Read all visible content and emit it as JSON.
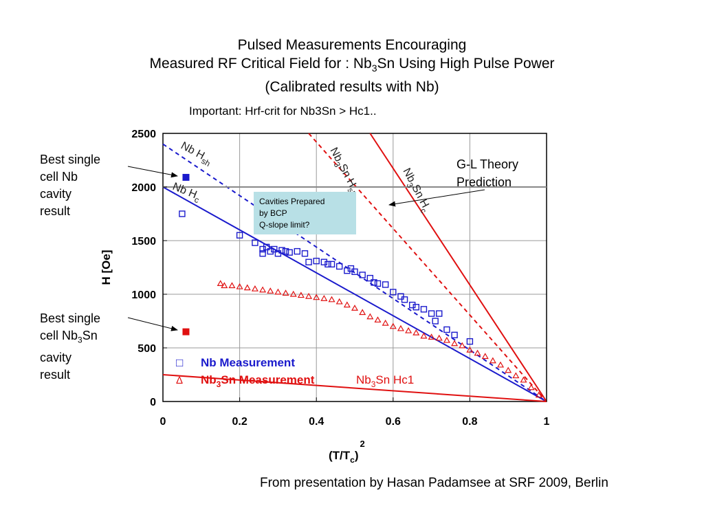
{
  "title": {
    "line1": "Pulsed Measurements Encouraging",
    "line2_pre": "Measured RF Critical Field for : Nb",
    "line2_sub": "3",
    "line2_post": "Sn Using High Pulse Power",
    "line3": "(Calibrated results with Nb)"
  },
  "note": "Important: Hrf-crit for Nb3Sn > Hc1..",
  "side_labels": {
    "nb": [
      "Best single",
      "cell Nb",
      "cavity",
      "result"
    ],
    "nb3sn_line1": "Best single",
    "nb3sn_line2_pre": "cell Nb",
    "nb3sn_line2_sub": "3",
    "nb3sn_line2_post": "Sn",
    "nb3sn_line3": "cavity",
    "nb3sn_line4": "result"
  },
  "credit": "From presentation by Hasan Padamsee at SRF 2009, Berlin",
  "colors": {
    "nb": "#1a1acc",
    "nb3sn": "#e01010",
    "theory_line": "#888888",
    "callout_bg": "#b8e0e6"
  },
  "chart_data": {
    "type": "scatter",
    "xlabel": "(T/T",
    "xlabel_sub": "c",
    "xlabel_post": ")",
    "xlabel_sup": "2",
    "ylabel": "H [Oe]",
    "xlim": [
      0,
      1
    ],
    "ylim": [
      0,
      2500
    ],
    "xticks": [
      "0",
      "0.2",
      "0.4",
      "0.6",
      "0.8",
      "1"
    ],
    "yticks": [
      "0",
      "500",
      "1000",
      "1500",
      "2000",
      "2500"
    ],
    "grid": true,
    "legend": {
      "nb_symbol": "□",
      "nb_label": "Nb Measurement",
      "nb3sn_symbol": "Δ",
      "nb3sn_label_pre": "Nb",
      "nb3sn_label_sub": "3",
      "nb3sn_label_post": "Sn Measurement"
    },
    "annotations": {
      "nb_hsh": "Nb H",
      "nb_hsh_sub": "sh",
      "nb_hc": "Nb H",
      "nb_hc_sub": "c",
      "nb3sn_hsh_pre": "Nb",
      "nb3sn_hsh_sub": "3",
      "nb3sn_hsh_mid": "Sn H",
      "nb3sn_hsh_sub2": "sh",
      "nb3sn_hc_pre": "Nb",
      "nb3sn_hc_sub": "3",
      "nb3sn_hc_mid": "Sn H",
      "nb3sn_hc_sub2": "c",
      "gl_line1": "G-L Theory",
      "gl_line2": "Prediction",
      "callout_line1": "Cavities Prepared",
      "callout_line2": "by BCP",
      "callout_line3": "Q-slope limit?",
      "hc1_pre": "Nb",
      "hc1_sub": "3",
      "hc1_post": "Sn Hc1"
    },
    "series": [
      {
        "kind": "line",
        "color": "nb",
        "dashed": false,
        "points": [
          [
            0,
            2000
          ],
          [
            1,
            0
          ]
        ]
      },
      {
        "kind": "line",
        "color": "nb",
        "dashed": true,
        "points": [
          [
            0,
            2400
          ],
          [
            1,
            0
          ]
        ]
      },
      {
        "kind": "line",
        "color": "nb3sn",
        "dashed": false,
        "points": [
          [
            0.54,
            2500
          ],
          [
            1,
            0
          ]
        ]
      },
      {
        "kind": "line",
        "color": "nb3sn",
        "dashed": true,
        "points": [
          [
            0.38,
            2500
          ],
          [
            1,
            0
          ]
        ]
      },
      {
        "kind": "line",
        "color": "nb3sn",
        "dashed": false,
        "points": [
          [
            0,
            250
          ],
          [
            1,
            0
          ]
        ]
      },
      {
        "kind": "hline",
        "color": "theory_line",
        "y": 2000
      },
      {
        "kind": "scatter",
        "name": "Nb Measurement",
        "marker": "square",
        "color": "nb",
        "points": [
          [
            0.05,
            1750
          ],
          [
            0.2,
            1550
          ],
          [
            0.24,
            1480
          ],
          [
            0.26,
            1420
          ],
          [
            0.26,
            1380
          ],
          [
            0.27,
            1440
          ],
          [
            0.28,
            1400
          ],
          [
            0.29,
            1420
          ],
          [
            0.3,
            1380
          ],
          [
            0.31,
            1410
          ],
          [
            0.32,
            1400
          ],
          [
            0.33,
            1390
          ],
          [
            0.35,
            1400
          ],
          [
            0.37,
            1380
          ],
          [
            0.38,
            1300
          ],
          [
            0.4,
            1310
          ],
          [
            0.42,
            1300
          ],
          [
            0.43,
            1280
          ],
          [
            0.44,
            1280
          ],
          [
            0.46,
            1260
          ],
          [
            0.48,
            1220
          ],
          [
            0.49,
            1240
          ],
          [
            0.5,
            1210
          ],
          [
            0.52,
            1180
          ],
          [
            0.54,
            1150
          ],
          [
            0.55,
            1110
          ],
          [
            0.56,
            1100
          ],
          [
            0.58,
            1090
          ],
          [
            0.6,
            1020
          ],
          [
            0.62,
            980
          ],
          [
            0.63,
            950
          ],
          [
            0.65,
            900
          ],
          [
            0.66,
            880
          ],
          [
            0.68,
            860
          ],
          [
            0.7,
            820
          ],
          [
            0.72,
            820
          ],
          [
            0.71,
            750
          ],
          [
            0.74,
            670
          ],
          [
            0.76,
            620
          ],
          [
            0.8,
            560
          ]
        ]
      },
      {
        "kind": "scatter",
        "name": "Nb3Sn Measurement",
        "marker": "triangle",
        "color": "nb3sn",
        "points": [
          [
            0.15,
            1100
          ],
          [
            0.16,
            1080
          ],
          [
            0.18,
            1080
          ],
          [
            0.2,
            1070
          ],
          [
            0.22,
            1060
          ],
          [
            0.24,
            1050
          ],
          [
            0.26,
            1040
          ],
          [
            0.28,
            1030
          ],
          [
            0.3,
            1020
          ],
          [
            0.32,
            1010
          ],
          [
            0.34,
            1000
          ],
          [
            0.36,
            990
          ],
          [
            0.38,
            980
          ],
          [
            0.4,
            970
          ],
          [
            0.42,
            960
          ],
          [
            0.44,
            950
          ],
          [
            0.46,
            930
          ],
          [
            0.48,
            900
          ],
          [
            0.5,
            870
          ],
          [
            0.52,
            830
          ],
          [
            0.54,
            790
          ],
          [
            0.56,
            760
          ],
          [
            0.58,
            730
          ],
          [
            0.6,
            700
          ],
          [
            0.62,
            680
          ],
          [
            0.64,
            660
          ],
          [
            0.66,
            640
          ],
          [
            0.68,
            610
          ],
          [
            0.7,
            600
          ],
          [
            0.72,
            590
          ],
          [
            0.74,
            570
          ],
          [
            0.76,
            540
          ],
          [
            0.78,
            520
          ],
          [
            0.8,
            480
          ],
          [
            0.82,
            450
          ],
          [
            0.84,
            420
          ],
          [
            0.86,
            380
          ],
          [
            0.88,
            340
          ],
          [
            0.9,
            290
          ],
          [
            0.92,
            240
          ],
          [
            0.94,
            200
          ],
          [
            0.96,
            130
          ],
          [
            0.98,
            60
          ]
        ]
      },
      {
        "kind": "point",
        "name": "Best single cell Nb cavity result",
        "marker": "filled-square",
        "color": "nb",
        "points": [
          [
            0.06,
            2090
          ]
        ]
      },
      {
        "kind": "point",
        "name": "Best single cell Nb3Sn cavity result",
        "marker": "filled-square",
        "color": "nb3sn",
        "points": [
          [
            0.06,
            650
          ]
        ]
      }
    ]
  }
}
